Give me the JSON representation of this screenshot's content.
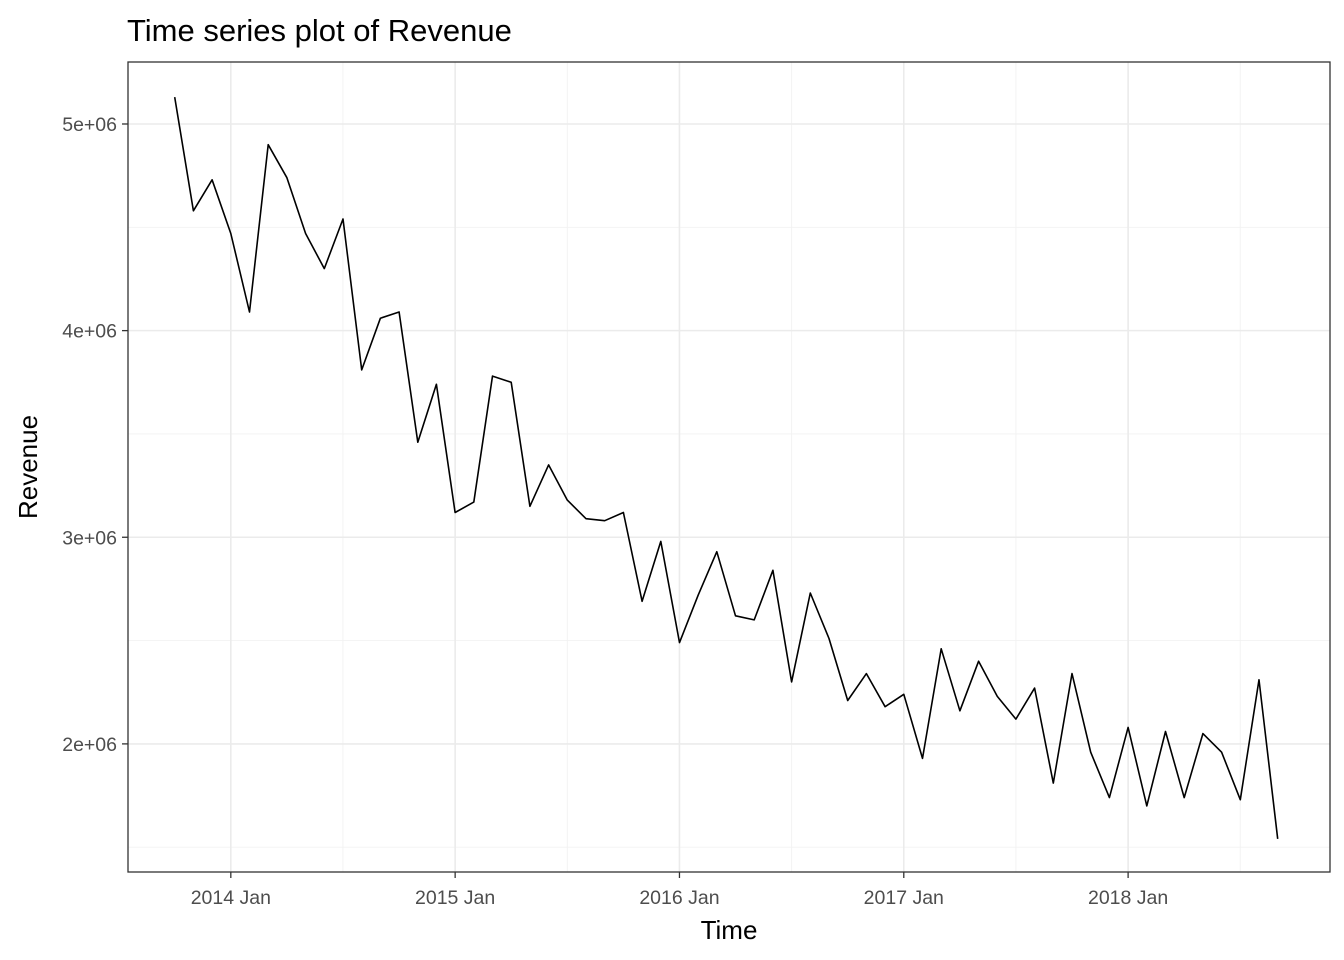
{
  "chart_data": {
    "type": "line",
    "title": "Time series plot of Revenue",
    "xlabel": "Time",
    "ylabel": "Revenue",
    "x_tick_labels": [
      "2014 Jan",
      "2015 Jan",
      "2016 Jan",
      "2017 Jan",
      "2018 Jan"
    ],
    "y_tick_labels": [
      "2e+06",
      "3e+06",
      "4e+06",
      "5e+06"
    ],
    "y_ticks": [
      2000000,
      3000000,
      4000000,
      5000000
    ],
    "ylim": [
      1380000,
      5300000
    ],
    "xlim": [
      "2013-07",
      "2018-12"
    ],
    "grid": true,
    "legend": "none",
    "line_color": "#000000",
    "series": [
      {
        "x": [
          "2013-10",
          "2013-11",
          "2013-12",
          "2014-01",
          "2014-02",
          "2014-03",
          "2014-04",
          "2014-05",
          "2014-06",
          "2014-07",
          "2014-08",
          "2014-09",
          "2014-10",
          "2014-11",
          "2014-12",
          "2015-01",
          "2015-02",
          "2015-03",
          "2015-04",
          "2015-05",
          "2015-06",
          "2015-07",
          "2015-08",
          "2015-09",
          "2015-10",
          "2015-11",
          "2015-12",
          "2016-01",
          "2016-02",
          "2016-03",
          "2016-04",
          "2016-05",
          "2016-06",
          "2016-07",
          "2016-08",
          "2016-09",
          "2016-10",
          "2016-11",
          "2016-12",
          "2017-01",
          "2017-02",
          "2017-03",
          "2017-04",
          "2017-05",
          "2017-06",
          "2017-07",
          "2017-08",
          "2017-09",
          "2017-10",
          "2017-11",
          "2017-12",
          "2018-01",
          "2018-02",
          "2018-03",
          "2018-04",
          "2018-05",
          "2018-06",
          "2018-07",
          "2018-08",
          "2018-09"
        ],
        "values": [
          5130000,
          4580000,
          4730000,
          4470000,
          4090000,
          4900000,
          4740000,
          4470000,
          4300000,
          4540000,
          3810000,
          4060000,
          4090000,
          3460000,
          3740000,
          3120000,
          3170000,
          3780000,
          3750000,
          3150000,
          3350000,
          3180000,
          3090000,
          3080000,
          3120000,
          2690000,
          2980000,
          2490000,
          2720000,
          2930000,
          2620000,
          2600000,
          2840000,
          2300000,
          2730000,
          2510000,
          2210000,
          2340000,
          2180000,
          2240000,
          1930000,
          2460000,
          2160000,
          2400000,
          2230000,
          2120000,
          2270000,
          1810000,
          2340000,
          1960000,
          1740000,
          2080000,
          1700000,
          2060000,
          1740000,
          2050000,
          1960000,
          1730000,
          2310000,
          1540000
        ]
      }
    ]
  }
}
